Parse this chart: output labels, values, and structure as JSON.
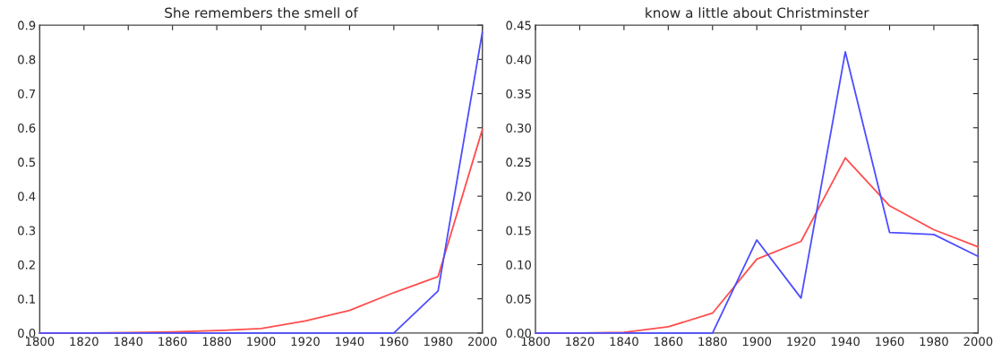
{
  "chart_data": [
    {
      "type": "line",
      "title": "She remembers the smell of",
      "x": [
        1800,
        1820,
        1840,
        1860,
        1880,
        1900,
        1920,
        1940,
        1960,
        1980,
        2000
      ],
      "series": [
        {
          "color": "#ff4d4d",
          "values": [
            0,
            0,
            0.001,
            0.003,
            0.007,
            0.013,
            0.035,
            0.066,
            0.118,
            0.165,
            0.595
          ]
        },
        {
          "color": "#4d4dff",
          "values": [
            0,
            0,
            0,
            0,
            0,
            0,
            0,
            0,
            0,
            0.123,
            0.88
          ]
        }
      ],
      "xlim": [
        1800,
        2000
      ],
      "xticks": [
        1800,
        1820,
        1840,
        1860,
        1880,
        1900,
        1920,
        1940,
        1960,
        1980,
        2000
      ],
      "ylim": [
        0,
        0.9
      ],
      "yticks": [
        {
          "value": 0,
          "label": "0.0"
        },
        0.1,
        0.2,
        0.3,
        0.4,
        0.5,
        0.6,
        0.7,
        0.8,
        0.9
      ],
      "grid": false,
      "legend": false
    },
    {
      "type": "line",
      "title": "know a little about Christminster",
      "x": [
        1800,
        1820,
        1840,
        1860,
        1880,
        1900,
        1920,
        1940,
        1960,
        1980,
        2000
      ],
      "series": [
        {
          "color": "#ff4d4d",
          "values": [
            0,
            0,
            0.001,
            0.009,
            0.029,
            0.108,
            0.134,
            0.256,
            0.186,
            0.151,
            0.126
          ]
        },
        {
          "color": "#4d4dff",
          "values": [
            0,
            0,
            0,
            0,
            0,
            0.136,
            0.051,
            0.411,
            0.147,
            0.144,
            0.112
          ]
        }
      ],
      "xlim": [
        1800,
        2000
      ],
      "xticks": [
        1800,
        1820,
        1840,
        1860,
        1880,
        1900,
        1920,
        1940,
        1960,
        1980,
        2000
      ],
      "ylim": [
        0,
        0.45
      ],
      "yticks": [
        {
          "value": 0,
          "label": "0.00"
        },
        0.05,
        {
          "value": 0.1,
          "label": "0.10"
        },
        0.15,
        {
          "value": 0.2,
          "label": "0.20"
        },
        0.25,
        {
          "value": 0.3,
          "label": "0.30"
        },
        0.35,
        {
          "value": 0.4,
          "label": "0.40"
        },
        0.45
      ],
      "grid": false,
      "legend": false
    }
  ]
}
